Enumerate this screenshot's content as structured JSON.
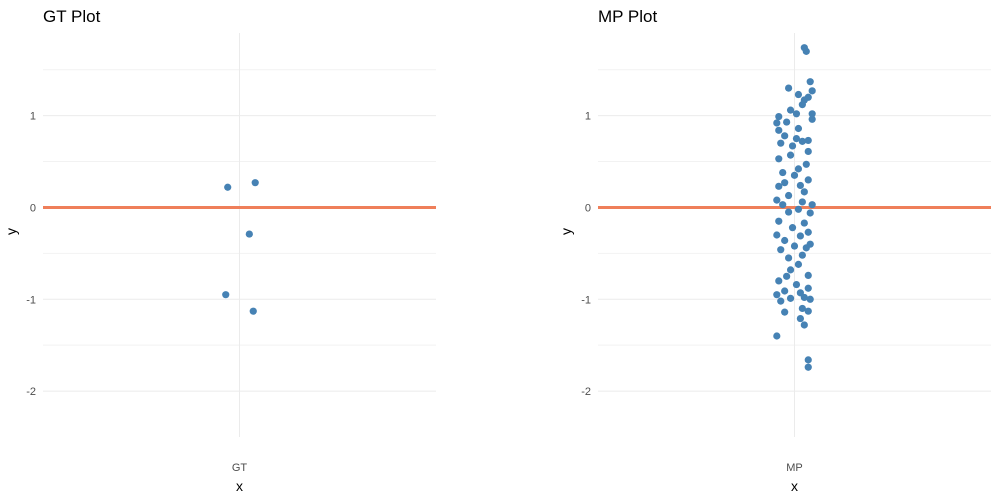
{
  "colors": {
    "points": "#4682b4",
    "zero_line": "#ef7f5a",
    "grid": "#ebebeb"
  },
  "chart_data": [
    {
      "type": "scatter",
      "title": "GT Plot",
      "xlabel": "x",
      "ylabel": "y",
      "categories": [
        "GT"
      ],
      "ylim": [
        -2.5,
        1.9
      ],
      "yticks": [
        -2,
        -1,
        0,
        1
      ],
      "hline": 0,
      "grid": true,
      "points": [
        {
          "x": "GT",
          "y": 0.22,
          "jitter": -0.06
        },
        {
          "x": "GT",
          "y": 0.27,
          "jitter": 0.08
        },
        {
          "x": "GT",
          "y": -0.29,
          "jitter": 0.05
        },
        {
          "x": "GT",
          "y": -0.95,
          "jitter": -0.07
        },
        {
          "x": "GT",
          "y": -1.13,
          "jitter": 0.07
        }
      ]
    },
    {
      "type": "scatter",
      "title": "MP Plot",
      "xlabel": "x",
      "ylabel": "y",
      "categories": [
        "MP"
      ],
      "ylim": [
        -2.5,
        1.9
      ],
      "yticks": [
        -2,
        -1,
        0,
        1
      ],
      "hline": 0,
      "grid": true,
      "points": [
        {
          "x": "MP",
          "y": 1.74,
          "jitter": 0.05
        },
        {
          "x": "MP",
          "y": 1.7,
          "jitter": 0.06
        },
        {
          "x": "MP",
          "y": 1.37,
          "jitter": 0.08
        },
        {
          "x": "MP",
          "y": 1.3,
          "jitter": -0.03
        },
        {
          "x": "MP",
          "y": 1.27,
          "jitter": 0.09
        },
        {
          "x": "MP",
          "y": 1.23,
          "jitter": 0.02
        },
        {
          "x": "MP",
          "y": 1.2,
          "jitter": 0.07
        },
        {
          "x": "MP",
          "y": 1.17,
          "jitter": 0.05
        },
        {
          "x": "MP",
          "y": 1.12,
          "jitter": 0.04
        },
        {
          "x": "MP",
          "y": 1.06,
          "jitter": -0.02
        },
        {
          "x": "MP",
          "y": 1.02,
          "jitter": 0.01
        },
        {
          "x": "MP",
          "y": 1.02,
          "jitter": 0.09
        },
        {
          "x": "MP",
          "y": 0.99,
          "jitter": -0.08
        },
        {
          "x": "MP",
          "y": 0.96,
          "jitter": 0.09
        },
        {
          "x": "MP",
          "y": 0.93,
          "jitter": -0.04
        },
        {
          "x": "MP",
          "y": 0.92,
          "jitter": -0.09
        },
        {
          "x": "MP",
          "y": 0.86,
          "jitter": 0.02
        },
        {
          "x": "MP",
          "y": 0.84,
          "jitter": -0.08
        },
        {
          "x": "MP",
          "y": 0.78,
          "jitter": -0.05
        },
        {
          "x": "MP",
          "y": 0.75,
          "jitter": 0.01
        },
        {
          "x": "MP",
          "y": 0.73,
          "jitter": 0.07
        },
        {
          "x": "MP",
          "y": 0.72,
          "jitter": 0.04
        },
        {
          "x": "MP",
          "y": 0.7,
          "jitter": -0.07
        },
        {
          "x": "MP",
          "y": 0.67,
          "jitter": -0.01
        },
        {
          "x": "MP",
          "y": 0.61,
          "jitter": 0.07
        },
        {
          "x": "MP",
          "y": 0.57,
          "jitter": -0.02
        },
        {
          "x": "MP",
          "y": 0.53,
          "jitter": -0.08
        },
        {
          "x": "MP",
          "y": 0.47,
          "jitter": 0.06
        },
        {
          "x": "MP",
          "y": 0.42,
          "jitter": 0.02
        },
        {
          "x": "MP",
          "y": 0.38,
          "jitter": -0.06
        },
        {
          "x": "MP",
          "y": 0.35,
          "jitter": 0.0
        },
        {
          "x": "MP",
          "y": 0.3,
          "jitter": 0.07
        },
        {
          "x": "MP",
          "y": 0.27,
          "jitter": -0.05
        },
        {
          "x": "MP",
          "y": 0.24,
          "jitter": 0.03
        },
        {
          "x": "MP",
          "y": 0.23,
          "jitter": -0.08
        },
        {
          "x": "MP",
          "y": 0.17,
          "jitter": 0.05
        },
        {
          "x": "MP",
          "y": 0.13,
          "jitter": -0.03
        },
        {
          "x": "MP",
          "y": 0.08,
          "jitter": -0.09
        },
        {
          "x": "MP",
          "y": 0.06,
          "jitter": 0.04
        },
        {
          "x": "MP",
          "y": 0.03,
          "jitter": -0.06
        },
        {
          "x": "MP",
          "y": 0.03,
          "jitter": 0.09
        },
        {
          "x": "MP",
          "y": -0.02,
          "jitter": 0.02
        },
        {
          "x": "MP",
          "y": -0.05,
          "jitter": -0.03
        },
        {
          "x": "MP",
          "y": -0.06,
          "jitter": 0.08
        },
        {
          "x": "MP",
          "y": -0.15,
          "jitter": -0.08
        },
        {
          "x": "MP",
          "y": -0.17,
          "jitter": 0.05
        },
        {
          "x": "MP",
          "y": -0.22,
          "jitter": -0.01
        },
        {
          "x": "MP",
          "y": -0.27,
          "jitter": 0.07
        },
        {
          "x": "MP",
          "y": -0.3,
          "jitter": -0.09
        },
        {
          "x": "MP",
          "y": -0.31,
          "jitter": 0.03
        },
        {
          "x": "MP",
          "y": -0.36,
          "jitter": -0.05
        },
        {
          "x": "MP",
          "y": -0.4,
          "jitter": 0.08
        },
        {
          "x": "MP",
          "y": -0.42,
          "jitter": 0.0
        },
        {
          "x": "MP",
          "y": -0.44,
          "jitter": 0.06
        },
        {
          "x": "MP",
          "y": -0.46,
          "jitter": -0.07
        },
        {
          "x": "MP",
          "y": -0.52,
          "jitter": 0.04
        },
        {
          "x": "MP",
          "y": -0.55,
          "jitter": -0.03
        },
        {
          "x": "MP",
          "y": -0.62,
          "jitter": 0.02
        },
        {
          "x": "MP",
          "y": -0.68,
          "jitter": -0.02
        },
        {
          "x": "MP",
          "y": -0.74,
          "jitter": 0.07
        },
        {
          "x": "MP",
          "y": -0.75,
          "jitter": -0.04
        },
        {
          "x": "MP",
          "y": -0.8,
          "jitter": -0.08
        },
        {
          "x": "MP",
          "y": -0.84,
          "jitter": 0.01
        },
        {
          "x": "MP",
          "y": -0.88,
          "jitter": 0.07
        },
        {
          "x": "MP",
          "y": -0.91,
          "jitter": -0.05
        },
        {
          "x": "MP",
          "y": -0.93,
          "jitter": 0.03
        },
        {
          "x": "MP",
          "y": -0.95,
          "jitter": -0.09
        },
        {
          "x": "MP",
          "y": -0.98,
          "jitter": 0.05
        },
        {
          "x": "MP",
          "y": -0.99,
          "jitter": -0.02
        },
        {
          "x": "MP",
          "y": -1.0,
          "jitter": 0.08
        },
        {
          "x": "MP",
          "y": -1.02,
          "jitter": -0.07
        },
        {
          "x": "MP",
          "y": -1.1,
          "jitter": 0.04
        },
        {
          "x": "MP",
          "y": -1.13,
          "jitter": 0.07
        },
        {
          "x": "MP",
          "y": -1.14,
          "jitter": -0.05
        },
        {
          "x": "MP",
          "y": -1.21,
          "jitter": 0.03
        },
        {
          "x": "MP",
          "y": -1.28,
          "jitter": 0.05
        },
        {
          "x": "MP",
          "y": -1.4,
          "jitter": -0.09
        },
        {
          "x": "MP",
          "y": -1.66,
          "jitter": 0.07
        },
        {
          "x": "MP",
          "y": -1.74,
          "jitter": 0.07
        }
      ]
    }
  ]
}
